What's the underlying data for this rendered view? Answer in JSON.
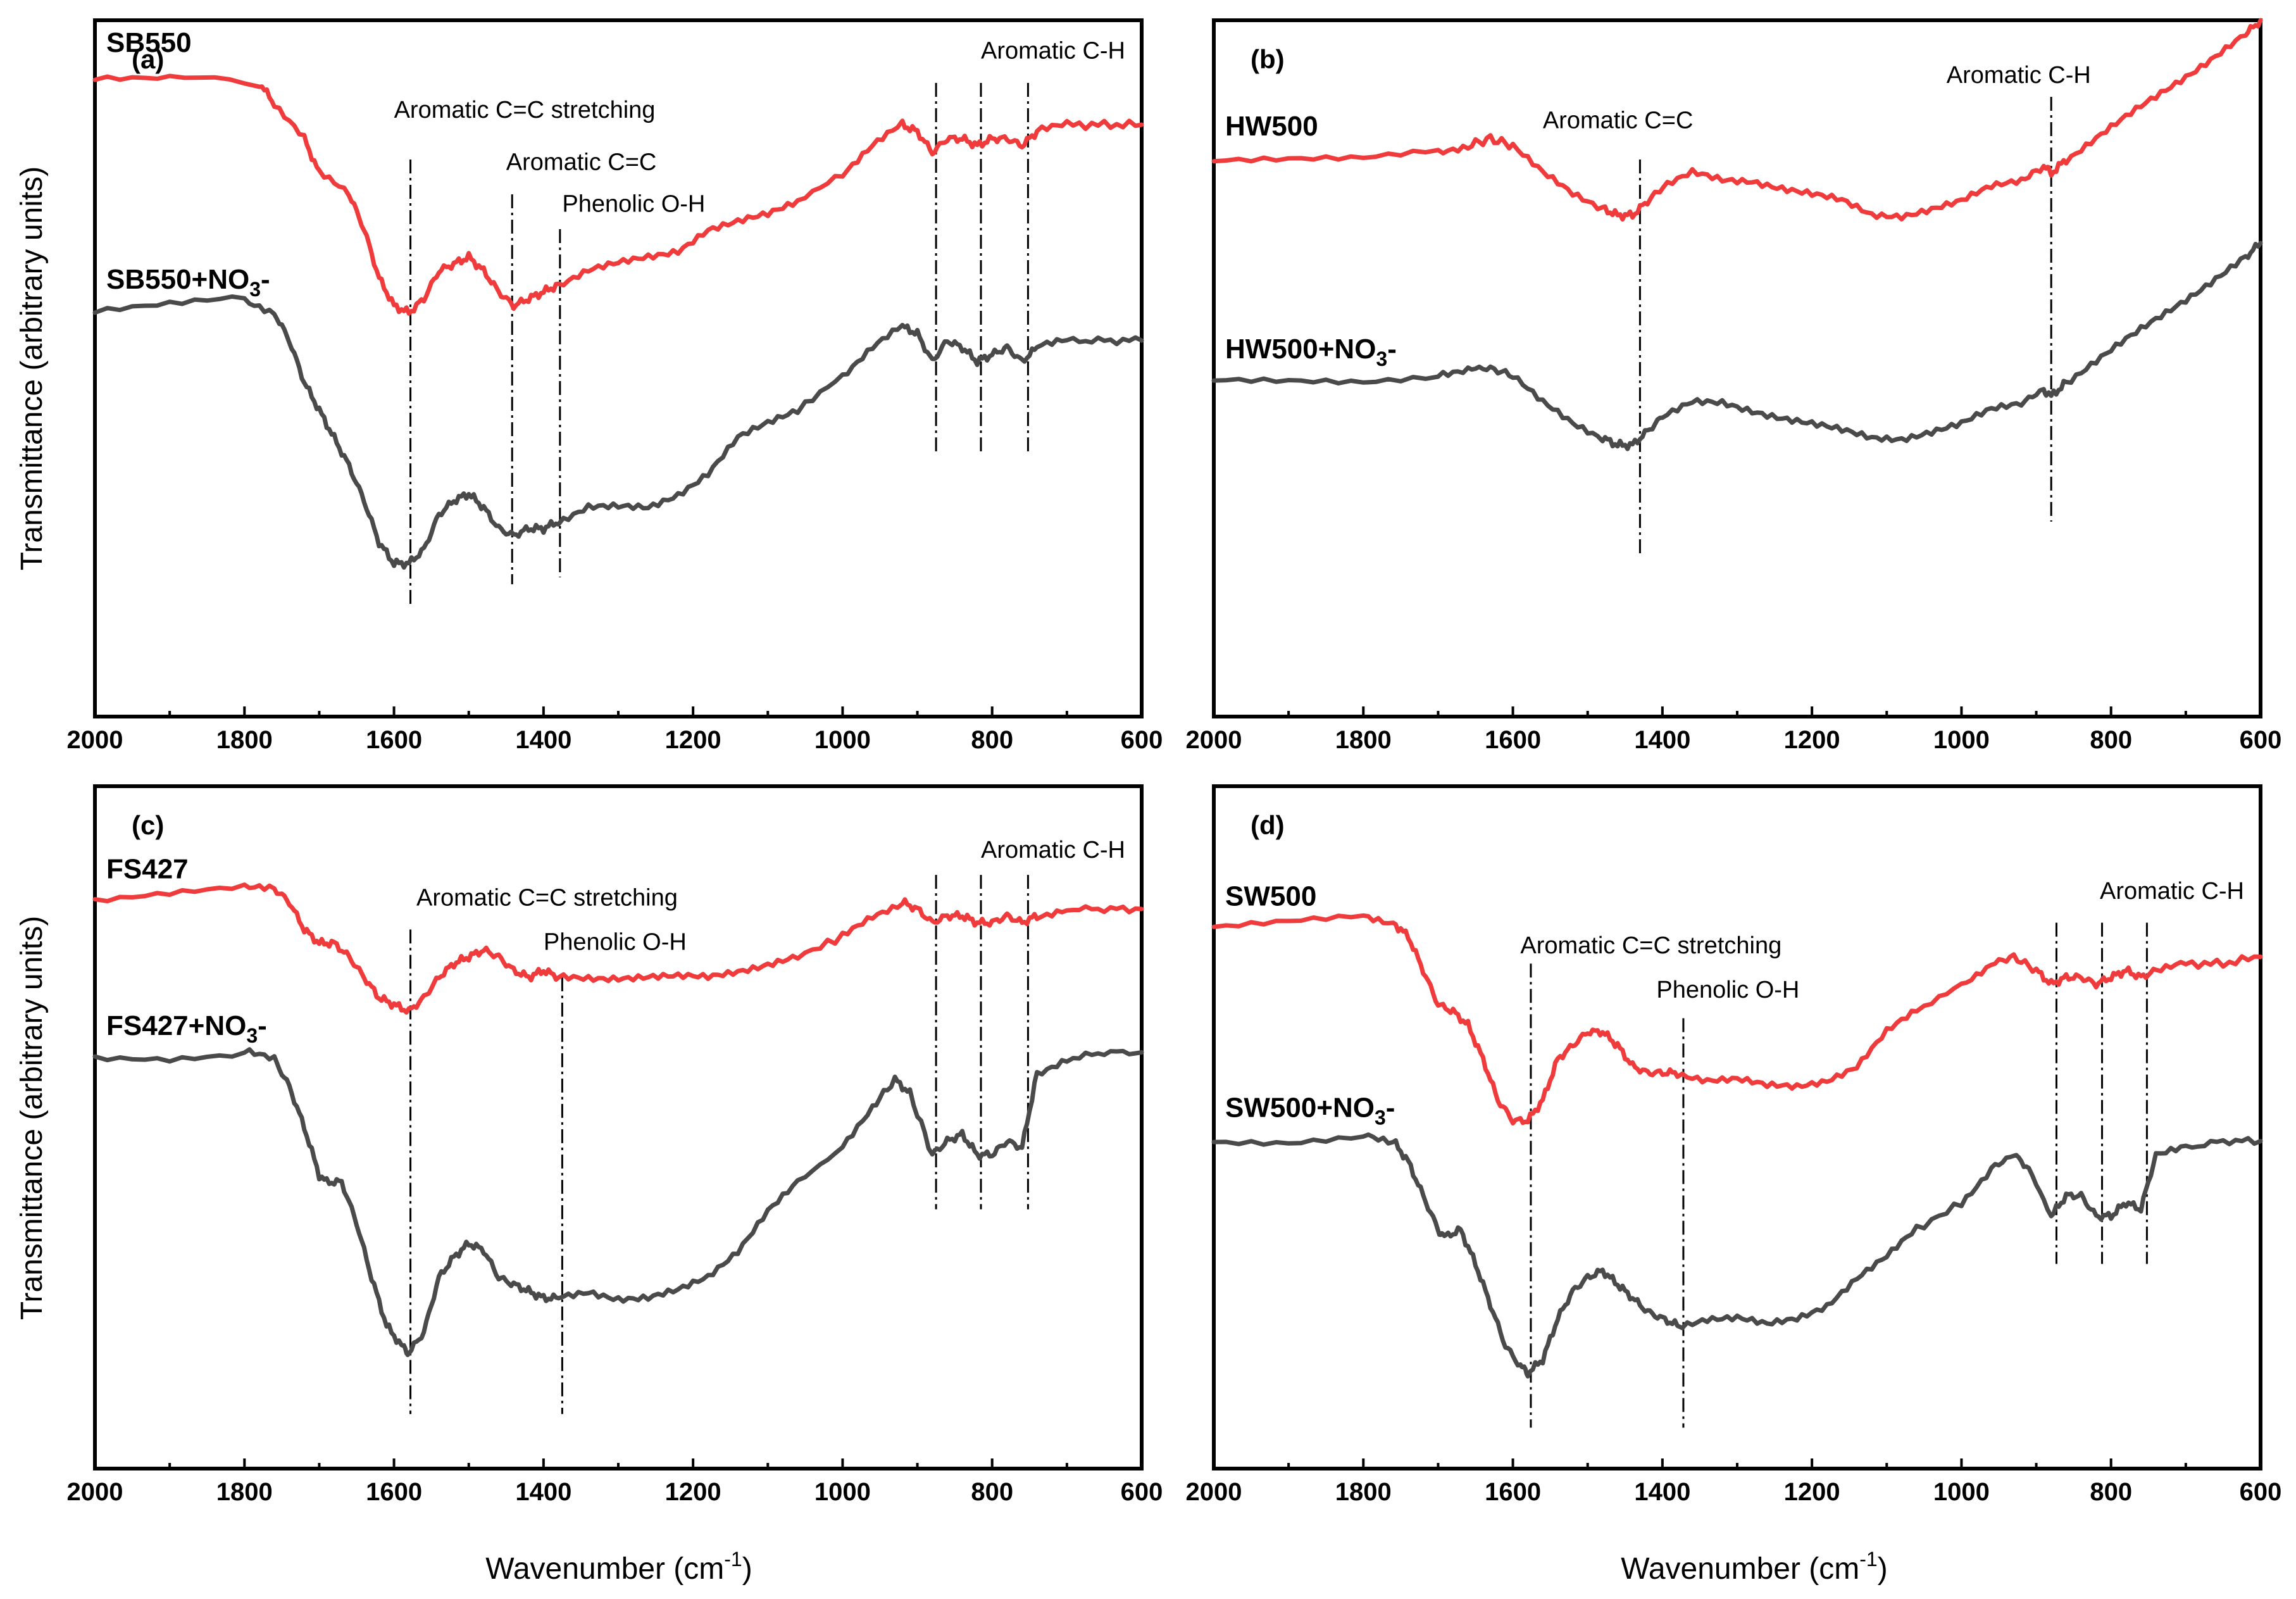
{
  "colors": {
    "red": "#ef3b3b",
    "dark": "#4a4a4a",
    "axis": "#000000"
  },
  "xlabel": "Wavenumber (cm",
  "xlabel_sup": "-1",
  "xlabel_end": ")",
  "ylabel": "Transmittance (arbitrary units)",
  "chart_data": [
    {
      "id": "a",
      "panel_label": "(a)",
      "type": "line",
      "xlim": [
        2000,
        600
      ],
      "ylim": [
        0,
        100
      ],
      "xticks": [
        2000,
        1800,
        1600,
        1400,
        1200,
        1000,
        800,
        600
      ],
      "series": [
        {
          "name": "SB550",
          "label_main": "SB550",
          "label_sub": "",
          "label_tail": "",
          "color": "red",
          "x": [
            2000,
            1900,
            1780,
            1760,
            1720,
            1700,
            1660,
            1640,
            1620,
            1600,
            1580,
            1560,
            1540,
            1520,
            1500,
            1480,
            1460,
            1440,
            1420,
            1400,
            1380,
            1340,
            1300,
            1260,
            1220,
            1180,
            1140,
            1100,
            1060,
            1000,
            960,
            920,
            900,
            880,
            860,
            840,
            820,
            800,
            780,
            760,
            740,
            700,
            650,
            600
          ],
          "y": [
            92,
            92,
            91,
            88,
            83,
            78,
            75,
            70,
            63,
            59,
            58,
            60,
            64,
            65,
            66,
            64,
            61,
            59,
            60,
            61,
            62,
            64,
            65,
            66,
            67,
            70,
            71,
            72,
            74,
            78,
            82,
            85,
            84,
            81,
            83,
            83,
            82,
            83,
            83,
            82,
            84,
            85,
            85,
            85
          ]
        },
        {
          "name": "SB550+NO3-",
          "label_main": "SB550+NO",
          "label_sub": "3",
          "label_tail": "-",
          "color": "dark",
          "x": [
            2000,
            1900,
            1800,
            1760,
            1740,
            1720,
            1700,
            1680,
            1660,
            1640,
            1620,
            1600,
            1580,
            1560,
            1540,
            1520,
            1500,
            1480,
            1460,
            1440,
            1420,
            1400,
            1380,
            1340,
            1300,
            1260,
            1220,
            1180,
            1140,
            1100,
            1060,
            1000,
            960,
            920,
            900,
            880,
            860,
            840,
            820,
            800,
            780,
            760,
            740,
            700,
            650,
            600
          ],
          "y": [
            58,
            59,
            60,
            58,
            54,
            48,
            44,
            40,
            36,
            31,
            25,
            22,
            22,
            24,
            29,
            31,
            32,
            30,
            27,
            26,
            27,
            27,
            28,
            30,
            30,
            30,
            32,
            35,
            40,
            42,
            44,
            49,
            53,
            56,
            55,
            51,
            54,
            53,
            51,
            52,
            53,
            51,
            53,
            54,
            54,
            54
          ]
        }
      ],
      "markers": [
        {
          "x": 1578,
          "y_top": 80,
          "y_bottom": 16
        },
        {
          "x": 1442,
          "y_top": 75,
          "y_bottom": 19
        },
        {
          "x": 1378,
          "y_top": 70,
          "y_bottom": 20
        },
        {
          "x": 875,
          "y_top": 91,
          "y_bottom": 38
        },
        {
          "x": 815,
          "y_top": 91,
          "y_bottom": 38
        },
        {
          "x": 752,
          "y_top": 91,
          "y_bottom": 38
        }
      ],
      "annotations": [
        {
          "text": "Aromatic C=C stretching",
          "x": 1600,
          "y": 86
        },
        {
          "text": "Aromatic C=C",
          "x": 1450,
          "y": 78.5
        },
        {
          "text": "Phenolic O-H",
          "x": 1375,
          "y": 72.5
        },
        {
          "text": "Aromatic C-H",
          "x": 815,
          "y": 94.5
        }
      ]
    },
    {
      "id": "b",
      "panel_label": "(b)",
      "type": "line",
      "xlim": [
        2000,
        600
      ],
      "ylim": [
        0,
        100
      ],
      "xticks": [
        2000,
        1800,
        1600,
        1400,
        1200,
        1000,
        800,
        600
      ],
      "series": [
        {
          "name": "HW500",
          "label_main": "HW500",
          "label_sub": "",
          "label_tail": "",
          "color": "red",
          "x": [
            2000,
            1900,
            1800,
            1700,
            1660,
            1630,
            1600,
            1560,
            1520,
            1480,
            1460,
            1440,
            1420,
            1400,
            1360,
            1320,
            1280,
            1240,
            1200,
            1160,
            1120,
            1080,
            1040,
            1000,
            960,
            920,
            890,
            880,
            860,
            820,
            780,
            740,
            700,
            660,
            620,
            600
          ],
          "y": [
            80,
            80,
            80,
            81,
            82,
            83,
            82,
            78,
            75,
            73,
            72,
            72,
            74,
            76,
            78,
            77,
            77,
            76,
            75,
            74,
            72,
            72,
            73,
            74,
            76,
            77,
            79,
            78,
            80,
            83,
            86,
            89,
            92,
            95,
            98,
            100
          ]
        },
        {
          "name": "HW500+NO3-",
          "label_main": "HW500+NO",
          "label_sub": "3",
          "label_tail": "-",
          "color": "dark",
          "x": [
            2000,
            1900,
            1800,
            1700,
            1660,
            1630,
            1600,
            1560,
            1520,
            1480,
            1460,
            1440,
            1420,
            1400,
            1360,
            1320,
            1280,
            1240,
            1200,
            1160,
            1120,
            1080,
            1040,
            1000,
            960,
            920,
            890,
            880,
            860,
            820,
            780,
            740,
            700,
            660,
            620,
            600
          ],
          "y": [
            48,
            48,
            48,
            49,
            50,
            50,
            49,
            45,
            42,
            40,
            39,
            39,
            41,
            43,
            45,
            45,
            44,
            43,
            42,
            41,
            40,
            40,
            41,
            42,
            44,
            45,
            47,
            46,
            48,
            51,
            54,
            57,
            60,
            63,
            66,
            68
          ]
        }
      ],
      "markers": [
        {
          "x": 1430,
          "y_top": 80,
          "y_bottom": 23
        },
        {
          "x": 880,
          "y_top": 89,
          "y_bottom": 28
        }
      ],
      "annotations": [
        {
          "text": "Aromatic C=C",
          "x": 1560,
          "y": 84.5
        },
        {
          "text": "Aromatic C-H",
          "x": 1020,
          "y": 91
        }
      ]
    },
    {
      "id": "c",
      "panel_label": "(c)",
      "type": "line",
      "xlim": [
        2000,
        600
      ],
      "ylim": [
        0,
        100
      ],
      "xticks": [
        2000,
        1800,
        1600,
        1400,
        1200,
        1000,
        800,
        600
      ],
      "series": [
        {
          "name": "FS427",
          "label_main": "FS427",
          "label_sub": "",
          "label_tail": "",
          "color": "red",
          "x": [
            2000,
            1900,
            1800,
            1760,
            1740,
            1720,
            1700,
            1680,
            1660,
            1640,
            1620,
            1600,
            1580,
            1560,
            1540,
            1520,
            1500,
            1480,
            1460,
            1440,
            1420,
            1400,
            1380,
            1340,
            1300,
            1260,
            1220,
            1180,
            1140,
            1100,
            1060,
            1000,
            960,
            920,
            900,
            880,
            860,
            840,
            820,
            800,
            780,
            760,
            740,
            700,
            650,
            600
          ],
          "y": [
            83,
            84,
            85,
            85,
            83,
            79,
            77,
            77,
            75,
            72,
            69,
            68,
            67,
            69,
            72,
            74,
            75,
            76,
            75,
            73,
            72,
            73,
            72,
            72,
            72,
            72,
            72,
            72,
            73,
            74,
            75,
            78,
            81,
            83,
            82,
            80,
            81,
            81,
            80,
            80,
            81,
            80,
            81,
            82,
            82,
            82
          ]
        },
        {
          "name": "FS427+NO3-",
          "label_main": "FS427+NO",
          "label_sub": "3",
          "label_tail": "-",
          "color": "dark",
          "x": [
            2000,
            1900,
            1800,
            1760,
            1740,
            1720,
            1700,
            1690,
            1670,
            1650,
            1630,
            1610,
            1590,
            1580,
            1560,
            1540,
            1520,
            1500,
            1480,
            1460,
            1440,
            1420,
            1400,
            1380,
            1340,
            1300,
            1260,
            1220,
            1180,
            1140,
            1100,
            1060,
            1000,
            960,
            930,
            910,
            880,
            860,
            840,
            820,
            800,
            780,
            760,
            740,
            700,
            650,
            600
          ],
          "y": [
            60,
            60,
            61,
            60,
            56,
            50,
            43,
            42,
            42,
            36,
            28,
            21,
            18,
            17,
            20,
            28,
            31,
            33,
            32,
            28,
            27,
            26,
            25,
            25,
            26,
            25,
            25,
            26,
            28,
            32,
            38,
            42,
            47,
            53,
            57,
            55,
            46,
            48,
            49,
            46,
            46,
            48,
            47,
            58,
            60,
            61,
            61
          ]
        }
      ],
      "markers": [
        {
          "x": 1578,
          "y_top": 79,
          "y_bottom": 8
        },
        {
          "x": 1375,
          "y_top": 72,
          "y_bottom": 8
        },
        {
          "x": 875,
          "y_top": 87,
          "y_bottom": 38
        },
        {
          "x": 815,
          "y_top": 87,
          "y_bottom": 38
        },
        {
          "x": 752,
          "y_top": 87,
          "y_bottom": 38
        }
      ],
      "annotations": [
        {
          "text": "Aromatic C=C stretching",
          "x": 1570,
          "y": 82.5
        },
        {
          "text": "Phenolic O-H",
          "x": 1400,
          "y": 76
        },
        {
          "text": "Aromatic C-H",
          "x": 815,
          "y": 89.5
        }
      ]
    },
    {
      "id": "d",
      "panel_label": "(d)",
      "type": "line",
      "xlim": [
        2000,
        600
      ],
      "ylim": [
        0,
        100
      ],
      "xticks": [
        2000,
        1800,
        1600,
        1400,
        1200,
        1000,
        800,
        600
      ],
      "series": [
        {
          "name": "SW500",
          "label_main": "SW500",
          "label_sub": "",
          "label_tail": "",
          "color": "red",
          "x": [
            2000,
            1900,
            1800,
            1760,
            1740,
            1720,
            1700,
            1680,
            1660,
            1640,
            1620,
            1600,
            1580,
            1560,
            1540,
            1520,
            1500,
            1480,
            1460,
            1440,
            1420,
            1400,
            1380,
            1340,
            1300,
            1260,
            1220,
            1180,
            1140,
            1100,
            1060,
            1000,
            960,
            930,
            900,
            880,
            860,
            840,
            820,
            800,
            780,
            760,
            740,
            700,
            650,
            600
          ],
          "y": [
            79,
            80,
            81,
            80,
            78,
            73,
            68,
            67,
            65,
            60,
            54,
            51,
            51,
            54,
            60,
            62,
            64,
            64,
            62,
            59,
            58,
            58,
            58,
            57,
            57,
            56,
            56,
            57,
            59,
            64,
            67,
            71,
            74,
            75,
            73,
            71,
            72,
            72,
            71,
            72,
            73,
            72,
            73,
            74,
            74,
            75
          ]
        },
        {
          "name": "SW500+NO3-",
          "label_main": "SW500+NO",
          "label_sub": "3",
          "label_tail": "-",
          "color": "dark",
          "x": [
            2000,
            1900,
            1800,
            1760,
            1740,
            1720,
            1700,
            1690,
            1670,
            1650,
            1630,
            1610,
            1590,
            1580,
            1560,
            1540,
            1520,
            1500,
            1480,
            1460,
            1440,
            1420,
            1400,
            1380,
            1340,
            1300,
            1260,
            1220,
            1180,
            1140,
            1100,
            1060,
            1000,
            960,
            930,
            910,
            880,
            860,
            840,
            820,
            800,
            780,
            760,
            740,
            700,
            650,
            600
          ],
          "y": [
            48,
            48,
            49,
            48,
            45,
            40,
            35,
            34,
            35,
            30,
            24,
            18,
            15,
            14,
            16,
            22,
            26,
            28,
            29,
            27,
            25,
            23,
            22,
            21,
            22,
            22,
            21,
            22,
            24,
            28,
            31,
            35,
            39,
            44,
            46,
            44,
            37,
            40,
            40,
            37,
            37,
            39,
            38,
            46,
            47,
            48,
            48
          ]
        }
      ],
      "markers": [
        {
          "x": 1576,
          "y_top": 74,
          "y_bottom": 6
        },
        {
          "x": 1372,
          "y_top": 66,
          "y_bottom": 6
        },
        {
          "x": 873,
          "y_top": 80,
          "y_bottom": 30
        },
        {
          "x": 812,
          "y_top": 80,
          "y_bottom": 30
        },
        {
          "x": 752,
          "y_top": 80,
          "y_bottom": 30
        }
      ],
      "annotations": [
        {
          "text": "Aromatic C=C stretching",
          "x": 1590,
          "y": 75.5
        },
        {
          "text": "Phenolic O-H",
          "x": 1408,
          "y": 69
        },
        {
          "text": "Aromatic C-H",
          "x": 815,
          "y": 83.5
        }
      ]
    }
  ]
}
